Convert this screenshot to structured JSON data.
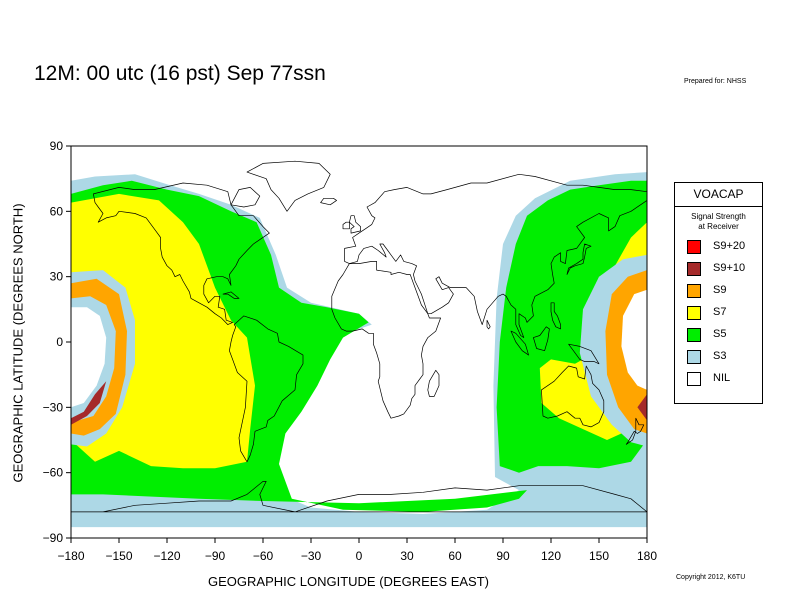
{
  "title": "12M:  00 utc (16 pst) Sep 77ssn",
  "prepared_for": "Prepared for: NHSS",
  "copyright": "Copyright 2012, K6TU",
  "x_axis": {
    "label": "GEOGRAPHIC LONGITUDE (DEGREES EAST)",
    "ticks": [
      -180,
      -150,
      -120,
      -90,
      -60,
      -30,
      0,
      30,
      60,
      90,
      120,
      150,
      180
    ],
    "tick_labels": [
      "−180",
      "−150",
      "−120",
      "−90",
      "−60",
      "−30",
      "0",
      "30",
      "60",
      "90",
      "120",
      "150",
      "180"
    ]
  },
  "y_axis": {
    "label": "GEOGRAPHIC LATITUDE (DEGREES NORTH)",
    "ticks": [
      90,
      60,
      30,
      0,
      -30,
      -60,
      -90
    ],
    "tick_labels": [
      "90",
      "60",
      "30",
      "0",
      "−30",
      "−60",
      "−90"
    ]
  },
  "legend": {
    "heading": "VOACAP",
    "subheading_1": "Signal Strength",
    "subheading_2": "at Receiver",
    "items": [
      {
        "label": "S9+20",
        "color": "#ff0000"
      },
      {
        "label": "S9+10",
        "color": "#a52a2a"
      },
      {
        "label": "S9",
        "color": "#ffa500"
      },
      {
        "label": "S7",
        "color": "#ffff00"
      },
      {
        "label": "S5",
        "color": "#00ee00"
      },
      {
        "label": "S3",
        "color": "#add8e6"
      },
      {
        "label": "NIL",
        "color": "#ffffff"
      }
    ]
  },
  "coverage_regions": [
    {
      "level": "S3",
      "polygon": [
        [
          -180,
          74
        ],
        [
          -165,
          76
        ],
        [
          -140,
          77
        ],
        [
          -118,
          72
        ],
        [
          -100,
          68
        ],
        [
          -80,
          63
        ],
        [
          -62,
          57
        ],
        [
          -52,
          40
        ],
        [
          -45,
          25
        ],
        [
          -30,
          18
        ],
        [
          0,
          13
        ],
        [
          8,
          8
        ],
        [
          -12,
          3
        ],
        [
          -25,
          -14
        ],
        [
          -40,
          -34
        ],
        [
          -46,
          -40
        ],
        [
          -56,
          -56
        ],
        [
          -56,
          -68
        ],
        [
          -30,
          -76
        ],
        [
          0,
          -78
        ],
        [
          40,
          -79
        ],
        [
          80,
          -77
        ],
        [
          100,
          -68
        ],
        [
          111,
          -45
        ],
        [
          125,
          -48
        ],
        [
          150,
          -50
        ],
        [
          162,
          -40
        ],
        [
          178,
          -32
        ],
        [
          180,
          -30
        ],
        [
          180,
          -85
        ],
        [
          -180,
          -85
        ]
      ]
    },
    {
      "level": "S3",
      "polygon": [
        [
          85,
          -62
        ],
        [
          84,
          -20
        ],
        [
          86,
          20
        ],
        [
          90,
          45
        ],
        [
          98,
          58
        ],
        [
          110,
          66
        ],
        [
          132,
          74
        ],
        [
          160,
          77
        ],
        [
          180,
          78
        ],
        [
          180,
          -56
        ],
        [
          165,
          -58
        ],
        [
          140,
          -59
        ],
        [
          118,
          -61
        ],
        [
          100,
          -68
        ]
      ]
    },
    {
      "level": "S5",
      "polygon": [
        [
          -180,
          68
        ],
        [
          -160,
          72
        ],
        [
          -142,
          74
        ],
        [
          -120,
          70
        ],
        [
          -100,
          67
        ],
        [
          -80,
          60
        ],
        [
          -64,
          55
        ],
        [
          -55,
          40
        ],
        [
          -50,
          25
        ],
        [
          -36,
          18
        ],
        [
          -20,
          16
        ],
        [
          0,
          13
        ],
        [
          6,
          9
        ],
        [
          -10,
          2
        ],
        [
          -18,
          -8
        ],
        [
          -26,
          -20
        ],
        [
          -36,
          -32
        ],
        [
          -46,
          -42
        ],
        [
          -50,
          -56
        ],
        [
          -42,
          -72
        ],
        [
          -10,
          -77
        ],
        [
          40,
          -78
        ],
        [
          80,
          -76
        ],
        [
          100,
          -72
        ],
        [
          105,
          -68
        ],
        [
          60,
          -72
        ],
        [
          0,
          -74
        ],
        [
          -60,
          -73
        ],
        [
          -100,
          -72
        ],
        [
          -160,
          -70
        ],
        [
          -180,
          -70
        ]
      ]
    },
    {
      "level": "S5",
      "polygon": [
        [
          88,
          -57
        ],
        [
          86,
          -30
        ],
        [
          88,
          0
        ],
        [
          92,
          25
        ],
        [
          98,
          45
        ],
        [
          105,
          58
        ],
        [
          118,
          65
        ],
        [
          132,
          70
        ],
        [
          150,
          72
        ],
        [
          170,
          74
        ],
        [
          180,
          74
        ],
        [
          180,
          -45
        ],
        [
          170,
          -55
        ],
        [
          150,
          -58
        ],
        [
          130,
          -57
        ],
        [
          112,
          -57
        ],
        [
          100,
          -60
        ]
      ]
    },
    {
      "level": "S7",
      "polygon": [
        [
          -180,
          64
        ],
        [
          -150,
          68
        ],
        [
          -125,
          65
        ],
        [
          -110,
          55
        ],
        [
          -100,
          45
        ],
        [
          -95,
          35
        ],
        [
          -90,
          25
        ],
        [
          -80,
          10
        ],
        [
          -70,
          2
        ],
        [
          -65,
          -20
        ],
        [
          -68,
          -40
        ],
        [
          -70,
          -55
        ],
        [
          -90,
          -58
        ],
        [
          -110,
          -58
        ],
        [
          -130,
          -57
        ],
        [
          -150,
          -50
        ],
        [
          -165,
          -55
        ],
        [
          -180,
          -45
        ]
      ]
    },
    {
      "level": "S7",
      "polygon": [
        [
          114,
          -28
        ],
        [
          113,
          -12
        ],
        [
          120,
          -8
        ],
        [
          135,
          -10
        ],
        [
          140,
          -8
        ],
        [
          145,
          5
        ],
        [
          152,
          15
        ],
        [
          160,
          35
        ],
        [
          170,
          48
        ],
        [
          180,
          55
        ],
        [
          180,
          -45
        ],
        [
          170,
          -40
        ],
        [
          155,
          -45
        ],
        [
          140,
          -40
        ],
        [
          125,
          -35
        ]
      ]
    },
    {
      "level": "S3",
      "polygon": [
        [
          -180,
          32
        ],
        [
          -160,
          33
        ],
        [
          -146,
          25
        ],
        [
          -140,
          10
        ],
        [
          -140,
          -10
        ],
        [
          -148,
          -30
        ],
        [
          -158,
          -42
        ],
        [
          -170,
          -48
        ],
        [
          -180,
          -47
        ]
      ]
    },
    {
      "level": "S9",
      "polygon": [
        [
          -180,
          27
        ],
        [
          -164,
          29
        ],
        [
          -150,
          22
        ],
        [
          -145,
          5
        ],
        [
          -146,
          -15
        ],
        [
          -152,
          -33
        ],
        [
          -162,
          -40
        ],
        [
          -172,
          -43
        ],
        [
          -180,
          -42
        ]
      ]
    },
    {
      "level": "S3",
      "polygon": [
        [
          -180,
          20
        ],
        [
          -168,
          21
        ],
        [
          -158,
          17
        ],
        [
          -152,
          5
        ],
        [
          -153,
          -12
        ],
        [
          -158,
          -25
        ],
        [
          -166,
          -34
        ],
        [
          -180,
          -37
        ]
      ]
    },
    {
      "level": "S9+10",
      "polygon": [
        [
          -180,
          -38
        ],
        [
          -170,
          -34
        ],
        [
          -162,
          -28
        ],
        [
          -158,
          -18
        ],
        [
          -165,
          -24
        ],
        [
          -172,
          -32
        ],
        [
          -180,
          -35
        ]
      ]
    },
    {
      "level": "NIL",
      "polygon": [
        [
          -180,
          16
        ],
        [
          -170,
          16
        ],
        [
          -162,
          12
        ],
        [
          -158,
          2
        ],
        [
          -159,
          -10
        ],
        [
          -164,
          -20
        ],
        [
          -172,
          -28
        ],
        [
          -180,
          -30
        ]
      ]
    },
    {
      "level": "S3",
      "polygon": [
        [
          180,
          40
        ],
        [
          165,
          38
        ],
        [
          150,
          30
        ],
        [
          140,
          15
        ],
        [
          138,
          -5
        ],
        [
          145,
          -25
        ],
        [
          158,
          -38
        ],
        [
          170,
          -46
        ],
        [
          180,
          -48
        ]
      ]
    },
    {
      "level": "S9",
      "polygon": [
        [
          180,
          33
        ],
        [
          168,
          30
        ],
        [
          158,
          22
        ],
        [
          154,
          5
        ],
        [
          155,
          -15
        ],
        [
          162,
          -30
        ],
        [
          172,
          -40
        ],
        [
          180,
          -42
        ]
      ]
    },
    {
      "level": "S9+10",
      "polygon": [
        [
          180,
          -24
        ],
        [
          174,
          -30
        ],
        [
          180,
          -36
        ]
      ]
    },
    {
      "level": "NIL",
      "polygon": [
        [
          180,
          24
        ],
        [
          172,
          22
        ],
        [
          165,
          12
        ],
        [
          164,
          -2
        ],
        [
          168,
          -14
        ],
        [
          174,
          -20
        ],
        [
          180,
          -22
        ]
      ]
    }
  ]
}
